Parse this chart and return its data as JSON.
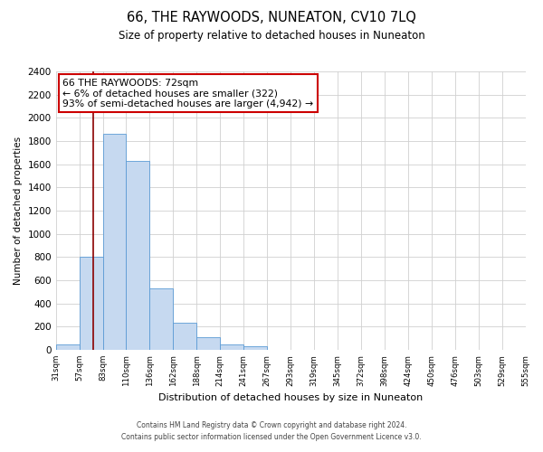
{
  "title": "66, THE RAYWOODS, NUNEATON, CV10 7LQ",
  "subtitle": "Size of property relative to detached houses in Nuneaton",
  "xlabel": "Distribution of detached houses by size in Nuneaton",
  "ylabel": "Number of detached properties",
  "bin_labels": [
    "31sqm",
    "57sqm",
    "83sqm",
    "110sqm",
    "136sqm",
    "162sqm",
    "188sqm",
    "214sqm",
    "241sqm",
    "267sqm",
    "293sqm",
    "319sqm",
    "345sqm",
    "372sqm",
    "398sqm",
    "424sqm",
    "450sqm",
    "476sqm",
    "503sqm",
    "529sqm",
    "555sqm"
  ],
  "bar_values": [
    50,
    800,
    1860,
    1630,
    530,
    235,
    110,
    50,
    30,
    0,
    0,
    0,
    0,
    0,
    0,
    0,
    0,
    0,
    0,
    0
  ],
  "bar_color": "#c6d9f0",
  "bar_edge_color": "#5b9bd5",
  "ylim": [
    0,
    2400
  ],
  "yticks": [
    0,
    200,
    400,
    600,
    800,
    1000,
    1200,
    1400,
    1600,
    1800,
    2000,
    2200,
    2400
  ],
  "property_line_color": "#8b0000",
  "annotation_title": "66 THE RAYWOODS: 72sqm",
  "annotation_line1": "← 6% of detached houses are smaller (322)",
  "annotation_line2": "93% of semi-detached houses are larger (4,942) →",
  "annotation_box_color": "#ffffff",
  "annotation_box_edge": "#cc0000",
  "footnote1": "Contains HM Land Registry data © Crown copyright and database right 2024.",
  "footnote2": "Contains public sector information licensed under the Open Government Licence v3.0.",
  "background_color": "#ffffff",
  "grid_color": "#d0d0d0"
}
